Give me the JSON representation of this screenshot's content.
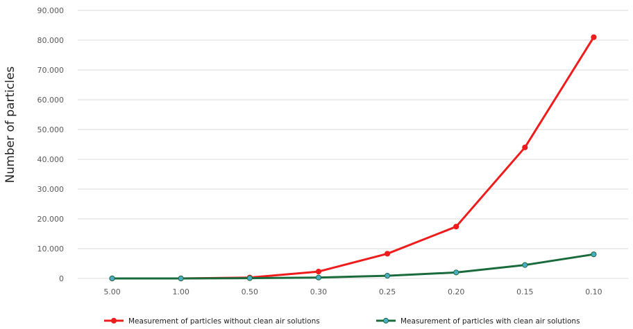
{
  "chart_data": {
    "type": "line",
    "title": "",
    "xlabel": "",
    "ylabel": "Number of particles",
    "categories": [
      "5.00",
      "1.00",
      "0.50",
      "0.30",
      "0.25",
      "0.20",
      "0.15",
      "0.10"
    ],
    "ylim": [
      0,
      90000
    ],
    "y_ticks": [
      0,
      10000,
      20000,
      30000,
      40000,
      50000,
      60000,
      70000,
      80000,
      90000
    ],
    "y_tick_labels": [
      "0",
      "10.000",
      "20.000",
      "30.000",
      "40.000",
      "50.000",
      "60.000",
      "70.000",
      "80.000",
      "90.000"
    ],
    "grid": "horizontal",
    "legend_position": "bottom",
    "series": [
      {
        "name": "Measurement of particles without clean air solutions",
        "color": "#ee1c1c",
        "marker_color": "#ee1c1c",
        "values": [
          0,
          0,
          300,
          2300,
          8300,
          17400,
          44000,
          81000
        ]
      },
      {
        "name": "Measurement of particles with clean air solutions",
        "color": "#1a6b3c",
        "marker_color": "#4bacc6",
        "values": [
          0,
          0,
          100,
          300,
          900,
          2000,
          4500,
          8100
        ]
      }
    ]
  }
}
